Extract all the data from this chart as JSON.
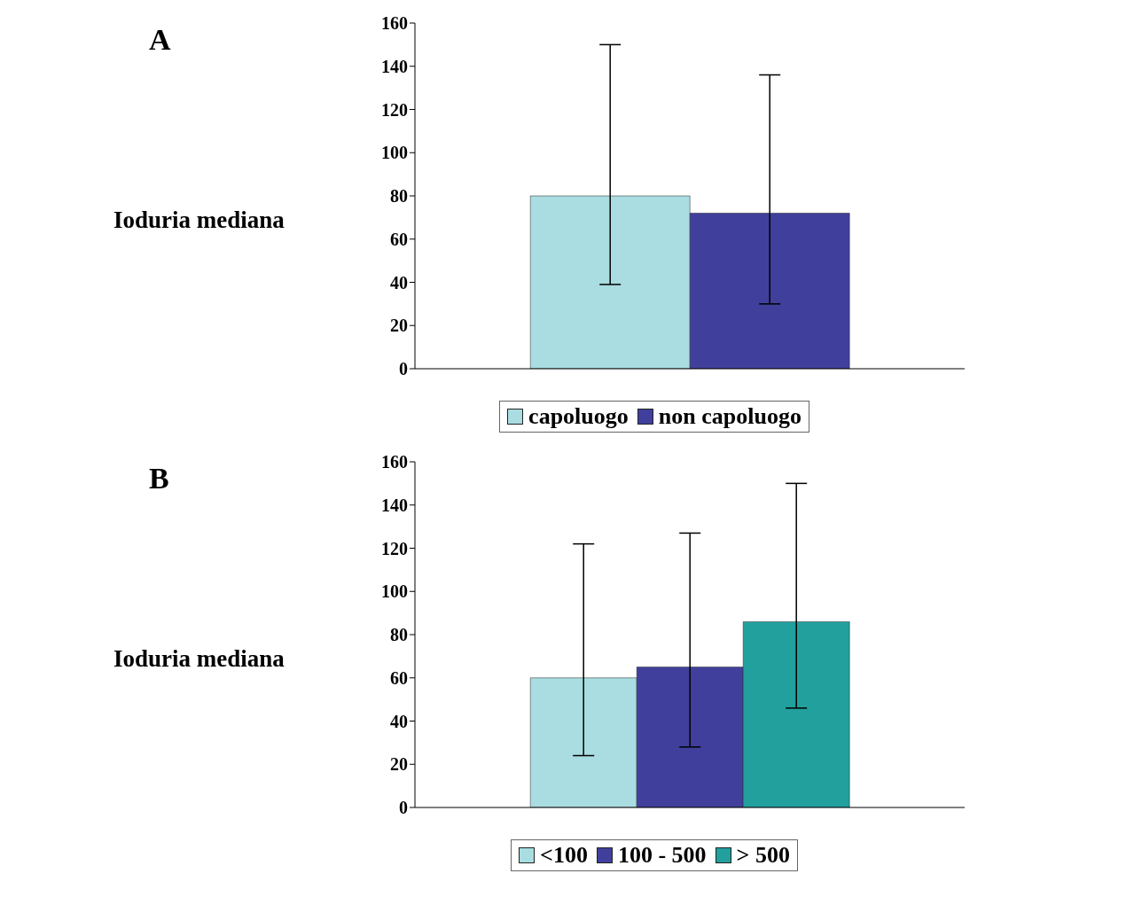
{
  "chart_data": [
    {
      "type": "bar",
      "annotations": [
        "A"
      ],
      "ylabel": "Ioduria mediana",
      "categories": [
        null
      ],
      "ylim": [
        0,
        160
      ],
      "yticks": [
        0,
        20,
        40,
        60,
        80,
        100,
        120,
        140,
        160
      ],
      "legend": "bottom",
      "grid": false,
      "series": [
        {
          "name": "capoluogo",
          "color": "#a9dde1",
          "values": [
            80
          ],
          "errors": [
            [
              39,
              150
            ]
          ]
        },
        {
          "name": "non capoluogo",
          "color": "#40409c",
          "values": [
            72
          ],
          "errors": [
            [
              30,
              136
            ]
          ]
        }
      ]
    },
    {
      "type": "bar",
      "annotations": [
        "B"
      ],
      "ylabel": "Ioduria mediana",
      "categories": [
        null
      ],
      "ylim": [
        0,
        160
      ],
      "yticks": [
        0,
        20,
        40,
        60,
        80,
        100,
        120,
        140,
        160
      ],
      "legend": "bottom",
      "grid": false,
      "series": [
        {
          "name": "<100",
          "color": "#a9dde1",
          "values": [
            60
          ],
          "errors": [
            [
              24,
              122
            ]
          ]
        },
        {
          "name": "100 - 500",
          "color": "#40409c",
          "values": [
            65
          ],
          "errors": [
            [
              28,
              127
            ]
          ]
        },
        {
          "name": "> 500",
          "color": "#22a09e",
          "values": [
            86
          ],
          "errors": [
            [
              46,
              150
            ]
          ]
        }
      ]
    }
  ]
}
